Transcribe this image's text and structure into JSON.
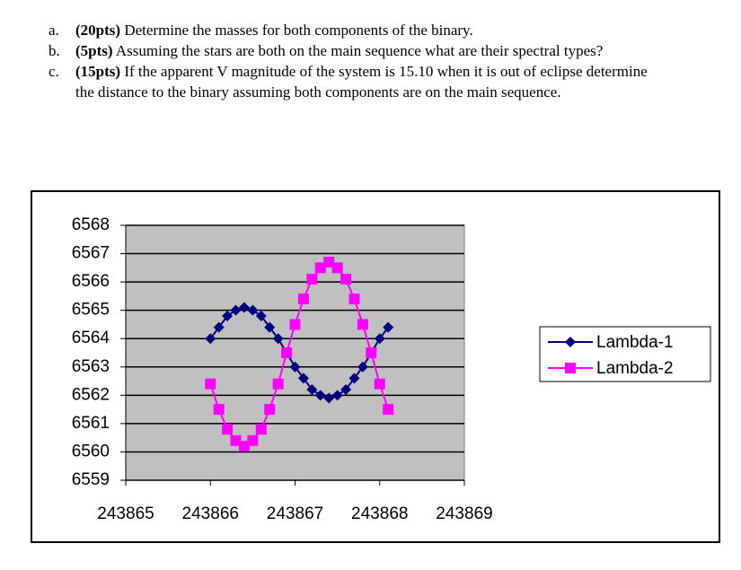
{
  "questions": [
    {
      "label": "a.",
      "points": "(20pts)",
      "text": "Determine the masses for both components of the binary."
    },
    {
      "label": "b.",
      "points": "(5pts)",
      "text": "Assuming the stars are both on the main sequence what are their spectral types?"
    },
    {
      "label": "c.",
      "points": "(15pts)",
      "text": "If the apparent V magnitude of the system is 15.10 when it is out of eclipse determine the distance to the binary assuming both components are on the main sequence."
    }
  ],
  "chart_data": {
    "type": "line",
    "x": [
      243866,
      243866.1,
      243866.2,
      243866.3,
      243866.4,
      243866.5,
      243866.6,
      243866.7,
      243866.8,
      243866.9,
      243867,
      243867.1,
      243867.2,
      243867.3,
      243867.4,
      243867.5,
      243867.6,
      243867.7,
      243867.8,
      243867.9,
      243868,
      243868.1
    ],
    "series": [
      {
        "name": "Lambda-1",
        "color": "#000080",
        "marker": "diamond",
        "values": [
          6564.0,
          6564.4,
          6564.8,
          6565.0,
          6565.1,
          6565.0,
          6564.8,
          6564.4,
          6564.0,
          6563.5,
          6563.0,
          6562.6,
          6562.2,
          6562.0,
          6561.9,
          6562.0,
          6562.2,
          6562.6,
          6563.0,
          6563.5,
          6564.0,
          6564.4
        ]
      },
      {
        "name": "Lambda-2",
        "color": "#ff00ff",
        "marker": "square",
        "values": [
          6562.4,
          6561.5,
          6560.8,
          6560.4,
          6560.2,
          6560.4,
          6560.8,
          6561.5,
          6562.4,
          6563.5,
          6564.5,
          6565.4,
          6566.1,
          6566.5,
          6566.7,
          6566.5,
          6566.1,
          6565.4,
          6564.5,
          6563.5,
          6562.4,
          6561.5
        ]
      }
    ],
    "xlim": [
      243865,
      243869
    ],
    "xticks": [
      243865,
      243866,
      243867,
      243868,
      243869
    ],
    "ylim": [
      6559,
      6568
    ],
    "yticks": [
      6559,
      6560,
      6561,
      6562,
      6563,
      6564,
      6565,
      6566,
      6567,
      6568
    ],
    "grid": true,
    "legend": "right"
  }
}
